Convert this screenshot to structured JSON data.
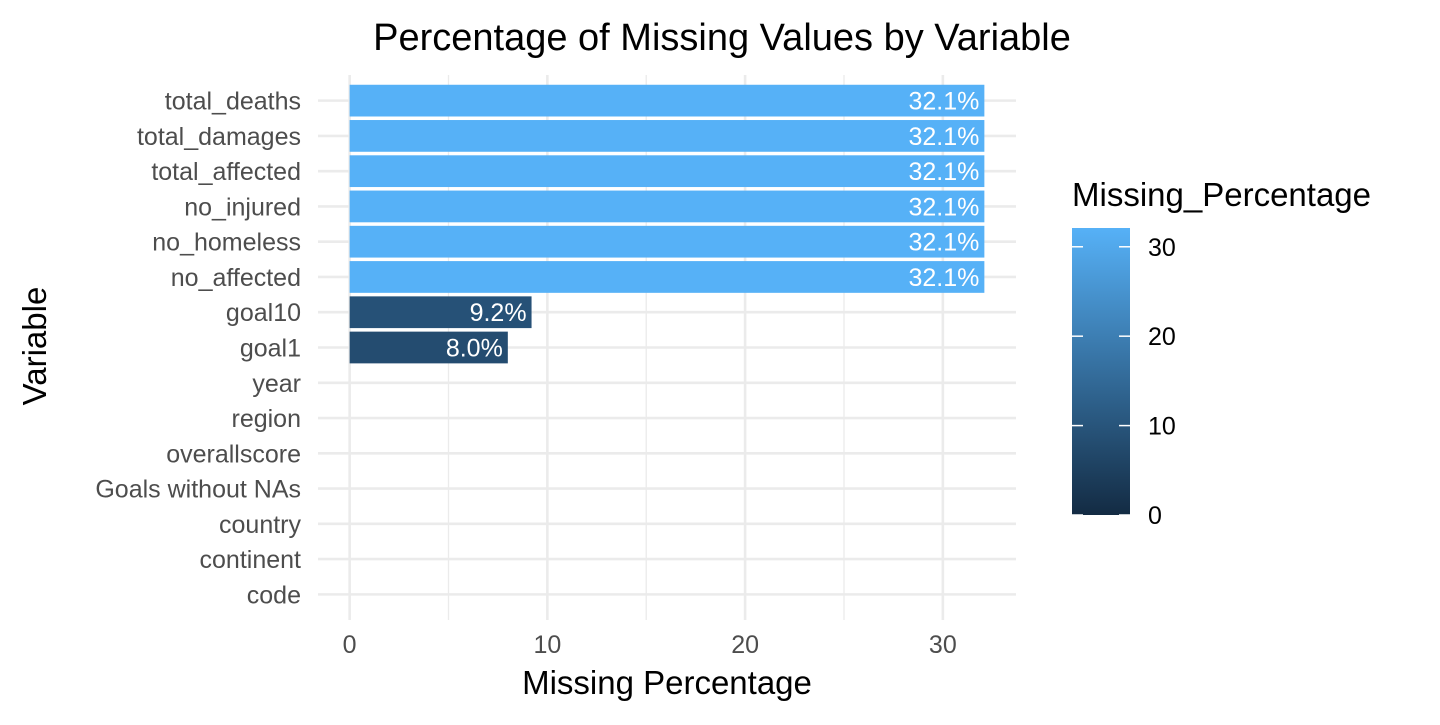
{
  "chart_data": {
    "type": "bar",
    "orientation": "horizontal",
    "title": "Percentage of Missing Values by Variable",
    "xlabel": "Missing Percentage",
    "ylabel": "Variable",
    "categories": [
      "total_deaths",
      "total_damages",
      "total_affected",
      "no_injured",
      "no_homeless",
      "no_affected",
      "goal10",
      "goal1",
      "year",
      "region",
      "overallscore",
      "Goals without NAs",
      "country",
      "continent",
      "code"
    ],
    "values": [
      32.1,
      32.1,
      32.1,
      32.1,
      32.1,
      32.1,
      9.2,
      8.0,
      0,
      0,
      0,
      0,
      0,
      0,
      0
    ],
    "data_labels": [
      "32.1%",
      "32.1%",
      "32.1%",
      "32.1%",
      "32.1%",
      "32.1%",
      "9.2%",
      "8.0%",
      "",
      "",
      "",
      "",
      "",
      "",
      ""
    ],
    "xlim": [
      -1.6,
      33.7
    ],
    "x_ticks": [
      0,
      10,
      20,
      30
    ],
    "x_tick_labels": [
      "0",
      "10",
      "20",
      "30"
    ],
    "grid": true,
    "legend": {
      "title": "Missing_Percentage",
      "position": "right",
      "type": "colorbar",
      "range": [
        0,
        32.1
      ],
      "ticks": [
        0,
        10,
        20,
        30
      ],
      "tick_labels": [
        "0",
        "10",
        "20",
        "30"
      ],
      "color_low": "#132B43",
      "color_high": "#56B1F7"
    }
  }
}
